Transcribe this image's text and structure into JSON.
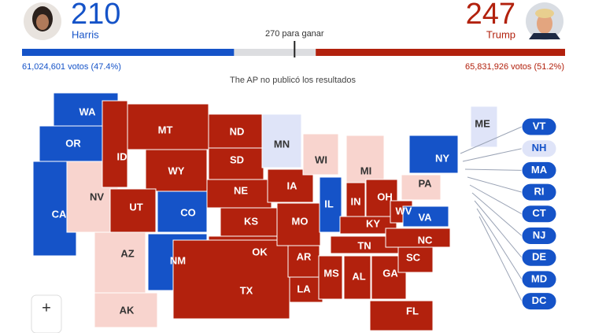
{
  "candidates": [
    {
      "name": "Harris",
      "electoral_votes": 210,
      "votes": "61,024,601 votos (47.4%)",
      "color": "#1553c8"
    },
    {
      "name": "Trump",
      "electoral_votes": 247,
      "votes": "65,831,926 votos (51.2%)",
      "color": "#b2210d"
    }
  ],
  "threshold": {
    "value": 270,
    "label": "270 para ganar"
  },
  "bar_range": [
    0,
    538
  ],
  "notice": "The AP no publicó los resultados",
  "map": {
    "states": [
      {
        "label": "WA",
        "color": "#1553c8"
      },
      {
        "label": "OR",
        "color": "#1553c8"
      },
      {
        "label": "CA",
        "color": "#1553c8"
      },
      {
        "label": "NV",
        "color": "#f8d4ce"
      },
      {
        "label": "ID",
        "color": "#b2210d"
      },
      {
        "label": "MT",
        "color": "#b2210d"
      },
      {
        "label": "WY",
        "color": "#b2210d"
      },
      {
        "label": "UT",
        "color": "#b2210d"
      },
      {
        "label": "CO",
        "color": "#1553c8"
      },
      {
        "label": "AZ",
        "color": "#f8d4ce"
      },
      {
        "label": "NM",
        "color": "#1553c8"
      },
      {
        "label": "ND",
        "color": "#b2210d"
      },
      {
        "label": "SD",
        "color": "#b2210d"
      },
      {
        "label": "NE",
        "color": "#b2210d"
      },
      {
        "label": "KS",
        "color": "#b2210d"
      },
      {
        "label": "OK",
        "color": "#b2210d"
      },
      {
        "label": "TX",
        "color": "#b2210d"
      },
      {
        "label": "MN",
        "color": "#dfe4f8"
      },
      {
        "label": "IA",
        "color": "#b2210d"
      },
      {
        "label": "MO",
        "color": "#b2210d"
      },
      {
        "label": "AR",
        "color": "#b2210d"
      },
      {
        "label": "LA",
        "color": "#b2210d"
      },
      {
        "label": "WI",
        "color": "#f8d4ce"
      },
      {
        "label": "IL",
        "color": "#1553c8"
      },
      {
        "label": "MI",
        "color": "#f8d4ce"
      },
      {
        "label": "IN",
        "color": "#b2210d"
      },
      {
        "label": "OH",
        "color": "#b2210d"
      },
      {
        "label": "KY",
        "color": "#b2210d"
      },
      {
        "label": "TN",
        "color": "#b2210d"
      },
      {
        "label": "MS",
        "color": "#b2210d"
      },
      {
        "label": "AL",
        "color": "#b2210d"
      },
      {
        "label": "GA",
        "color": "#b2210d"
      },
      {
        "label": "FL",
        "color": "#b2210d"
      },
      {
        "label": "SC",
        "color": "#b2210d"
      },
      {
        "label": "NC",
        "color": "#b2210d"
      },
      {
        "label": "WV",
        "color": "#b2210d"
      },
      {
        "label": "VA",
        "color": "#1553c8"
      },
      {
        "label": "PA",
        "color": "#f8d4ce"
      },
      {
        "label": "NY",
        "color": "#1553c8"
      },
      {
        "label": "ME",
        "color": "#dfe4f8"
      },
      {
        "label": "AK",
        "color": "#f8d4ce"
      }
    ],
    "callouts": [
      {
        "label": "VT",
        "color": "#1553c8"
      },
      {
        "label": "NH",
        "color": "#dfe4f8"
      },
      {
        "label": "MA",
        "color": "#1553c8"
      },
      {
        "label": "RI",
        "color": "#1553c8"
      },
      {
        "label": "CT",
        "color": "#1553c8"
      },
      {
        "label": "NJ",
        "color": "#1553c8"
      },
      {
        "label": "DE",
        "color": "#1553c8"
      },
      {
        "label": "MD",
        "color": "#1553c8"
      },
      {
        "label": "DC",
        "color": "#1553c8"
      }
    ],
    "zoom_in": "+"
  }
}
